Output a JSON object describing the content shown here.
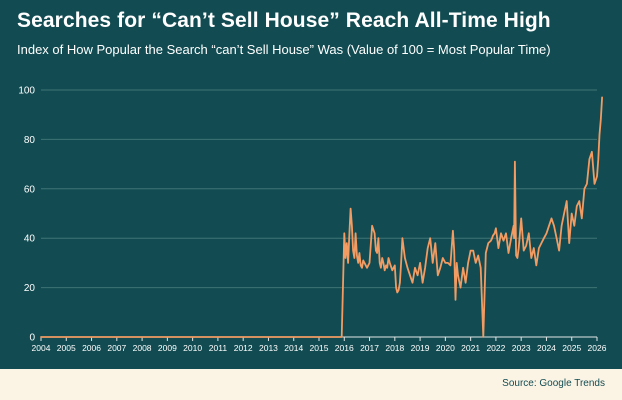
{
  "colors": {
    "background": "#124c52",
    "line": "#f29b62",
    "grid": "#3f7376",
    "axis": "#e0e6e6",
    "text": "#ffffff",
    "footer_bg": "#fbf3e4",
    "footer_text": "#124c52"
  },
  "footer": {
    "source": "Source: Google Trends"
  },
  "chart_data": {
    "type": "line",
    "title": "Searches for “Can’t Sell House” Reach All-Time High",
    "subtitle": "Index of How Popular the Search “can’t Sell House” Was (Value of 100 = Most Popular Time)",
    "xlabel": "",
    "ylabel": "",
    "x_ticks": [
      "2004",
      "2005",
      "2006",
      "2007",
      "2008",
      "2009",
      "2010",
      "2011",
      "2012",
      "2013",
      "2014",
      "2015",
      "2016",
      "2017",
      "2018",
      "2019",
      "2020",
      "2021",
      "2022",
      "2023",
      "2024",
      "2025",
      "2026"
    ],
    "y_ticks": [
      0,
      20,
      40,
      60,
      80,
      100
    ],
    "ylim": [
      0,
      100
    ],
    "xlim": [
      2004,
      2026
    ],
    "grid": "horizontal",
    "legend": "none",
    "series": [
      {
        "x": [
          2004,
          2015.9,
          2016.0,
          2016.05,
          2016.1,
          2016.15,
          2016.2,
          2016.25,
          2016.3,
          2016.35,
          2016.4,
          2016.45,
          2016.5,
          2016.55,
          2016.6,
          2016.65,
          2016.7,
          2016.75,
          2016.8,
          2016.9,
          2017.0,
          2017.1,
          2017.2,
          2017.25,
          2017.3,
          2017.35,
          2017.4,
          2017.45,
          2017.5,
          2017.55,
          2017.6,
          2017.65,
          2017.7,
          2017.75,
          2017.8,
          2017.9,
          2018.0,
          2018.05,
          2018.1,
          2018.15,
          2018.2,
          2018.25,
          2018.3,
          2018.4,
          2018.5,
          2018.6,
          2018.7,
          2018.8,
          2018.9,
          2019.0,
          2019.1,
          2019.2,
          2019.3,
          2019.4,
          2019.5,
          2019.6,
          2019.7,
          2019.8,
          2019.9,
          2020.0,
          2020.1,
          2020.2,
          2020.3,
          2020.35,
          2020.4,
          2020.45,
          2020.5,
          2020.6,
          2020.7,
          2020.8,
          2020.9,
          2021.0,
          2021.1,
          2021.2,
          2021.3,
          2021.4,
          2021.5,
          2021.6,
          2021.7,
          2021.8,
          2021.85,
          2021.88,
          2021.95,
          2022.0,
          2022.1,
          2022.2,
          2022.3,
          2022.4,
          2022.5,
          2022.6,
          2022.7,
          2022.72,
          2022.75,
          2022.8,
          2022.85,
          2022.9,
          2023.0,
          2023.1,
          2023.2,
          2023.3,
          2023.4,
          2023.5,
          2023.6,
          2023.7,
          2023.8,
          2023.9,
          2024.0,
          2024.1,
          2024.2,
          2024.3,
          2024.4,
          2024.5,
          2024.6,
          2024.7,
          2024.8,
          2024.9,
          2025.0,
          2025.1,
          2025.2,
          2025.3,
          2025.4,
          2025.5,
          2025.6,
          2025.7,
          2025.8,
          2025.9,
          2026.0,
          2026.05,
          2026.1,
          2026.15,
          2026.2
        ],
        "y": [
          0,
          0,
          42,
          32,
          38,
          30,
          41,
          52,
          45,
          35,
          32,
          42,
          33,
          30,
          34,
          29,
          28,
          31,
          30,
          28,
          30,
          45,
          42,
          35,
          34,
          40,
          30,
          28,
          32,
          30,
          27,
          29,
          28,
          32,
          30,
          27,
          29,
          20,
          18,
          19,
          22,
          30,
          40,
          32,
          28,
          25,
          22,
          28,
          25,
          30,
          22,
          28,
          36,
          40,
          30,
          38,
          25,
          28,
          32,
          30,
          30,
          29,
          43,
          35,
          15,
          30,
          25,
          20,
          28,
          22,
          30,
          35,
          35,
          30,
          33,
          28,
          0,
          34,
          38,
          39,
          40,
          41,
          42,
          44,
          36,
          42,
          39,
          42,
          34,
          40,
          45,
          40,
          71,
          33,
          32,
          36,
          48,
          35,
          37,
          42,
          32,
          36,
          29,
          36,
          38,
          40,
          42,
          45,
          48,
          45,
          40,
          35,
          45,
          50,
          55,
          38,
          50,
          45,
          53,
          55,
          48,
          60,
          62,
          72,
          75,
          62,
          65,
          72,
          82,
          88,
          97
        ]
      }
    ]
  }
}
